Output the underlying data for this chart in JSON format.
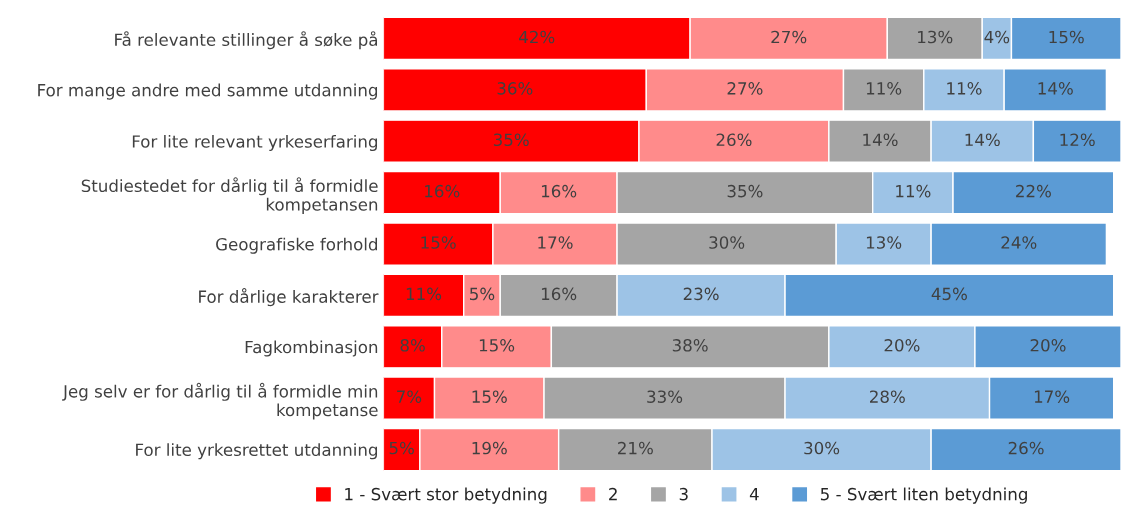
{
  "chart_data": {
    "type": "bar",
    "orientation": "horizontal",
    "stacked": true,
    "legend": "bottom",
    "tick_labels": "y",
    "grid": false,
    "categories": [
      "Få relevante stillinger å søke på",
      "For mange andre med samme utdanning",
      "For lite relevant yrkeserfaring",
      "Studiestedet for dårlig til å formidle\nkompetansen",
      "Geografiske forhold",
      "For dårlige karakterer",
      "Fagkombinasjon",
      "Jeg selv er for dårlig til å formidle min\nkompetanse",
      "For lite yrkesrettet utdanning"
    ],
    "series": [
      {
        "name": "1 - Svært stor betydning",
        "color": "#ff0000",
        "values": [
          42,
          36,
          35,
          16,
          15,
          11,
          8,
          7,
          5
        ],
        "value_labels": [
          "42%",
          "36%",
          "35%",
          "16%",
          "15%",
          "11%",
          "8%",
          "7%",
          "5%"
        ]
      },
      {
        "name": "2",
        "color": "#ff8b8b",
        "values": [
          27,
          27,
          26,
          16,
          17,
          5,
          15,
          15,
          19
        ],
        "value_labels": [
          "27%",
          "27%",
          "26%",
          "16%",
          "17%",
          "5%",
          "15%",
          "15%",
          "19%"
        ]
      },
      {
        "name": "3",
        "color": "#a5a5a5",
        "values": [
          13,
          11,
          14,
          35,
          30,
          16,
          38,
          33,
          21
        ],
        "value_labels": [
          "13%",
          "11%",
          "14%",
          "35%",
          "30%",
          "16%",
          "38%",
          "33%",
          "21%"
        ]
      },
      {
        "name": "4",
        "color": "#9dc3e6",
        "values": [
          4,
          11,
          14,
          11,
          13,
          23,
          20,
          28,
          30
        ],
        "value_labels": [
          "4%",
          "11%",
          "14%",
          "11%",
          "13%",
          "23%",
          "20%",
          "28%",
          "30%"
        ]
      },
      {
        "name": "5 - Svært liten betydning",
        "color": "#5b9bd5",
        "values": [
          15,
          14,
          12,
          22,
          24,
          45,
          20,
          17,
          26
        ],
        "value_labels": [
          "15%",
          "14%",
          "12%",
          "22%",
          "24%",
          "45%",
          "20%",
          "17%",
          "26%"
        ]
      }
    ]
  }
}
